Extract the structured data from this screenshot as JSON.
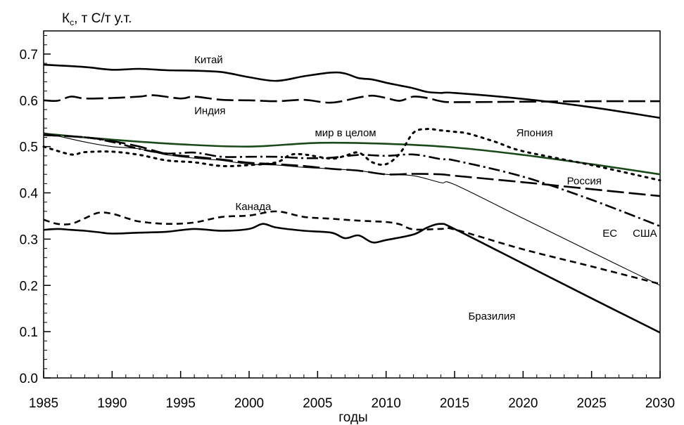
{
  "chart_data": {
    "type": "line",
    "ylabel_main": "К",
    "ylabel_sub": "с",
    "ylabel_rest": ", т С/т у.т.",
    "xlabel": "годы",
    "xlim": [
      1985,
      2030
    ],
    "ylim": [
      0,
      0.75
    ],
    "x_ticks": [
      1985,
      1990,
      1995,
      2000,
      2005,
      2010,
      2015,
      2020,
      2025,
      2030
    ],
    "y_ticks": [
      "0.0",
      "0.1",
      "0.2",
      "0.3",
      "0.4",
      "0.5",
      "0.6",
      "0.7"
    ],
    "y_tick_values": [
      0,
      0.1,
      0.2,
      0.3,
      0.4,
      0.5,
      0.6,
      0.7
    ],
    "grid": false,
    "series": [
      {
        "name": "Китай",
        "color": "#000000",
        "dash": "solid",
        "points": [
          [
            1985,
            0.677
          ],
          [
            1988,
            0.672
          ],
          [
            1990,
            0.666
          ],
          [
            1992,
            0.668
          ],
          [
            1994,
            0.665
          ],
          [
            1996,
            0.664
          ],
          [
            1998,
            0.661
          ],
          [
            2000,
            0.65
          ],
          [
            2002,
            0.642
          ],
          [
            2004,
            0.652
          ],
          [
            2006,
            0.66
          ],
          [
            2007,
            0.658
          ],
          [
            2008,
            0.648
          ],
          [
            2009,
            0.645
          ],
          [
            2010,
            0.638
          ],
          [
            2011,
            0.632
          ],
          [
            2012,
            0.626
          ],
          [
            2013,
            0.618
          ],
          [
            2014,
            0.616
          ],
          [
            2015,
            0.616
          ],
          [
            2020,
            0.603
          ],
          [
            2025,
            0.585
          ],
          [
            2030,
            0.562
          ]
        ]
      },
      {
        "name": "Индия",
        "color": "#000000",
        "dash": "longdash",
        "points": [
          [
            1985,
            0.6
          ],
          [
            1986,
            0.599
          ],
          [
            1987,
            0.608
          ],
          [
            1988,
            0.604
          ],
          [
            1990,
            0.605
          ],
          [
            1992,
            0.608
          ],
          [
            1993,
            0.611
          ],
          [
            1995,
            0.604
          ],
          [
            1996,
            0.608
          ],
          [
            1998,
            0.601
          ],
          [
            2000,
            0.6
          ],
          [
            2002,
            0.598
          ],
          [
            2004,
            0.601
          ],
          [
            2006,
            0.595
          ],
          [
            2008,
            0.606
          ],
          [
            2009,
            0.61
          ],
          [
            2010,
            0.605
          ],
          [
            2011,
            0.599
          ],
          [
            2012,
            0.608
          ],
          [
            2013,
            0.605
          ],
          [
            2014,
            0.598
          ],
          [
            2015,
            0.596
          ],
          [
            2020,
            0.597
          ],
          [
            2025,
            0.598
          ],
          [
            2030,
            0.598
          ]
        ]
      },
      {
        "name": "мир в целом",
        "color": "#1a4a1a",
        "dash": "solid",
        "points": [
          [
            1985,
            0.528
          ],
          [
            1990,
            0.515
          ],
          [
            1995,
            0.505
          ],
          [
            2000,
            0.5
          ],
          [
            2005,
            0.508
          ],
          [
            2010,
            0.506
          ],
          [
            2015,
            0.498
          ],
          [
            2020,
            0.482
          ],
          [
            2025,
            0.462
          ],
          [
            2030,
            0.44
          ]
        ]
      },
      {
        "name": "Япония",
        "color": "#000000",
        "dash": "dot",
        "points": [
          [
            1985,
            0.5
          ],
          [
            1987,
            0.483
          ],
          [
            1988,
            0.488
          ],
          [
            1990,
            0.489
          ],
          [
            1992,
            0.482
          ],
          [
            1994,
            0.47
          ],
          [
            1996,
            0.466
          ],
          [
            1998,
            0.458
          ],
          [
            2000,
            0.46
          ],
          [
            2002,
            0.466
          ],
          [
            2003,
            0.482
          ],
          [
            2004,
            0.483
          ],
          [
            2006,
            0.474
          ],
          [
            2007,
            0.48
          ],
          [
            2008,
            0.487
          ],
          [
            2009,
            0.466
          ],
          [
            2010,
            0.462
          ],
          [
            2011,
            0.485
          ],
          [
            2012,
            0.53
          ],
          [
            2013,
            0.538
          ],
          [
            2014,
            0.535
          ],
          [
            2015,
            0.532
          ],
          [
            2016,
            0.528
          ],
          [
            2018,
            0.51
          ],
          [
            2020,
            0.49
          ],
          [
            2025,
            0.46
          ],
          [
            2030,
            0.427
          ]
        ]
      },
      {
        "name": "Россия",
        "color": "#000000",
        "dash": "longdash",
        "points": [
          [
            1985,
            0.525
          ],
          [
            1988,
            0.52
          ],
          [
            1990,
            0.512
          ],
          [
            1992,
            0.5
          ],
          [
            1994,
            0.484
          ],
          [
            1996,
            0.478
          ],
          [
            1998,
            0.472
          ],
          [
            2000,
            0.465
          ],
          [
            2002,
            0.462
          ],
          [
            2004,
            0.458
          ],
          [
            2006,
            0.452
          ],
          [
            2008,
            0.448
          ],
          [
            2010,
            0.44
          ],
          [
            2012,
            0.441
          ],
          [
            2014,
            0.44
          ],
          [
            2015,
            0.437
          ],
          [
            2020,
            0.423
          ],
          [
            2025,
            0.408
          ],
          [
            2030,
            0.393
          ]
        ]
      },
      {
        "name": "США",
        "color": "#000000",
        "dash": "dashdot",
        "points": [
          [
            1985,
            0.525
          ],
          [
            1988,
            0.52
          ],
          [
            1990,
            0.51
          ],
          [
            1992,
            0.495
          ],
          [
            1994,
            0.485
          ],
          [
            1996,
            0.487
          ],
          [
            1998,
            0.478
          ],
          [
            2000,
            0.478
          ],
          [
            2002,
            0.478
          ],
          [
            2004,
            0.475
          ],
          [
            2006,
            0.476
          ],
          [
            2008,
            0.482
          ],
          [
            2010,
            0.48
          ],
          [
            2012,
            0.483
          ],
          [
            2014,
            0.473
          ],
          [
            2015,
            0.47
          ],
          [
            2020,
            0.435
          ],
          [
            2025,
            0.385
          ],
          [
            2030,
            0.328
          ]
        ]
      },
      {
        "name": "ЕС",
        "color": "#000000",
        "dash": "thin",
        "points": [
          [
            1985,
            0.53
          ],
          [
            1988,
            0.51
          ],
          [
            1990,
            0.5
          ],
          [
            1992,
            0.495
          ],
          [
            1994,
            0.482
          ],
          [
            1996,
            0.475
          ],
          [
            1998,
            0.47
          ],
          [
            2000,
            0.462
          ],
          [
            2002,
            0.46
          ],
          [
            2004,
            0.455
          ],
          [
            2006,
            0.452
          ],
          [
            2008,
            0.448
          ],
          [
            2010,
            0.44
          ],
          [
            2012,
            0.437
          ],
          [
            2014,
            0.422
          ],
          [
            2015,
            0.418
          ],
          [
            2020,
            0.345
          ],
          [
            2025,
            0.272
          ],
          [
            2030,
            0.2
          ]
        ]
      },
      {
        "name": "Канада",
        "color": "#000000",
        "dash": "shortdash",
        "points": [
          [
            1985,
            0.342
          ],
          [
            1986,
            0.333
          ],
          [
            1987,
            0.333
          ],
          [
            1988,
            0.345
          ],
          [
            1989,
            0.357
          ],
          [
            1990,
            0.355
          ],
          [
            1991,
            0.346
          ],
          [
            1992,
            0.338
          ],
          [
            1994,
            0.333
          ],
          [
            1996,
            0.336
          ],
          [
            1998,
            0.348
          ],
          [
            2000,
            0.351
          ],
          [
            2002,
            0.36
          ],
          [
            2004,
            0.348
          ],
          [
            2006,
            0.344
          ],
          [
            2008,
            0.34
          ],
          [
            2010,
            0.337
          ],
          [
            2011,
            0.332
          ],
          [
            2012,
            0.321
          ],
          [
            2014,
            0.322
          ],
          [
            2015,
            0.321
          ],
          [
            2020,
            0.278
          ],
          [
            2025,
            0.241
          ],
          [
            2030,
            0.203
          ]
        ]
      },
      {
        "name": "Бразилия",
        "color": "#000000",
        "dash": "solid",
        "points": [
          [
            1985,
            0.32
          ],
          [
            1986,
            0.322
          ],
          [
            1987,
            0.32
          ],
          [
            1988,
            0.318
          ],
          [
            1989,
            0.315
          ],
          [
            1990,
            0.312
          ],
          [
            1992,
            0.314
          ],
          [
            1994,
            0.316
          ],
          [
            1996,
            0.322
          ],
          [
            1998,
            0.318
          ],
          [
            2000,
            0.322
          ],
          [
            2001,
            0.333
          ],
          [
            2002,
            0.325
          ],
          [
            2004,
            0.318
          ],
          [
            2006,
            0.314
          ],
          [
            2007,
            0.302
          ],
          [
            2008,
            0.308
          ],
          [
            2009,
            0.293
          ],
          [
            2010,
            0.298
          ],
          [
            2012,
            0.31
          ],
          [
            2013,
            0.325
          ],
          [
            2014,
            0.333
          ],
          [
            2015,
            0.322
          ],
          [
            2020,
            0.247
          ],
          [
            2025,
            0.172
          ],
          [
            2030,
            0.098
          ]
        ]
      }
    ],
    "labels": [
      {
        "text": "Китай",
        "x": 1996.0,
        "y": 0.68
      },
      {
        "text": "Индия",
        "x": 1996.0,
        "y": 0.57
      },
      {
        "text": "мир в целом",
        "x": 2004.8,
        "y": 0.522
      },
      {
        "text": "Япония",
        "x": 2019.5,
        "y": 0.522
      },
      {
        "text": "Россия",
        "x": 2023.2,
        "y": 0.418
      },
      {
        "text": "Канада",
        "x": 1999.0,
        "y": 0.363
      },
      {
        "text": "ЕС",
        "x": 2025.8,
        "y": 0.305
      },
      {
        "text": "США",
        "x": 2028.0,
        "y": 0.305
      },
      {
        "text": "Бразилия",
        "x": 2016.0,
        "y": 0.126
      }
    ]
  }
}
